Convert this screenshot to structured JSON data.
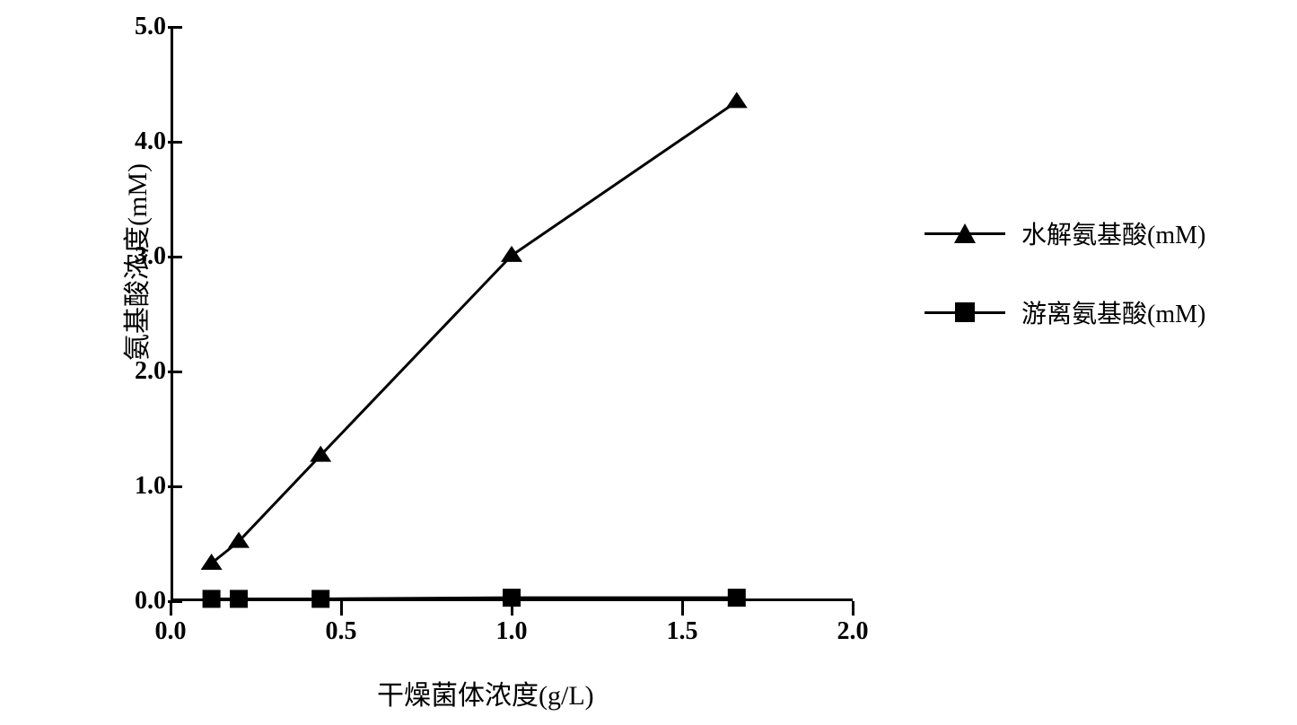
{
  "chart": {
    "type": "line",
    "background_color": "#ffffff",
    "axis_color": "#000000",
    "line_color": "#000000",
    "marker_fill": "#000000",
    "line_width": 3,
    "marker_size": 20,
    "ylabel": "氨基酸浓度(mM)",
    "xlabel": "干燥菌体浓度(g/L)",
    "label_fontsize": 30,
    "tick_fontsize": 28,
    "xlim": [
      0.0,
      2.0
    ],
    "ylim": [
      0.0,
      5.0
    ],
    "xticks": [
      "0.0",
      "0.5",
      "1.0",
      "1.5",
      "2.0"
    ],
    "xtick_values": [
      0.0,
      0.5,
      1.0,
      1.5,
      2.0
    ],
    "yticks": [
      "0.0",
      "1.0",
      "2.0",
      "3.0",
      "4.0",
      "5.0"
    ],
    "ytick_values": [
      0.0,
      1.0,
      2.0,
      3.0,
      4.0,
      5.0
    ],
    "series": [
      {
        "name": "水解氨基酸(mM)",
        "marker": "triangle",
        "color": "#000000",
        "x": [
          0.12,
          0.2,
          0.44,
          1.0,
          1.66
        ],
        "y": [
          0.33,
          0.52,
          1.27,
          3.01,
          4.35
        ]
      },
      {
        "name": "游离氨基酸(mM)",
        "marker": "square",
        "color": "#000000",
        "x": [
          0.12,
          0.2,
          0.44,
          1.0,
          1.66
        ],
        "y": [
          0.02,
          0.02,
          0.02,
          0.03,
          0.03
        ]
      }
    ]
  }
}
